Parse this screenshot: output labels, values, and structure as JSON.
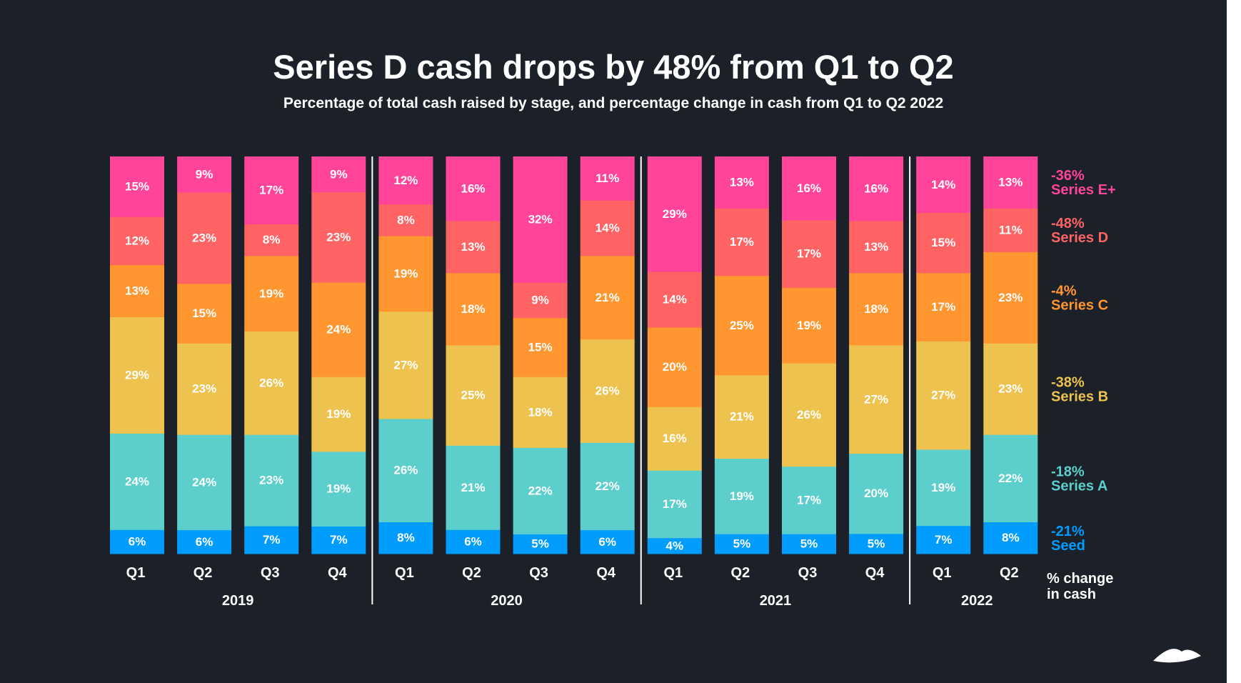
{
  "chart_data": {
    "type": "bar",
    "stacked": true,
    "title": "Series D cash drops by 48% from Q1 to Q2",
    "subtitle": "Percentage of total cash raised by stage, and percentage change in cash from Q1 to Q2 2022",
    "categories": [
      "Q1",
      "Q2",
      "Q3",
      "Q4",
      "Q1",
      "Q2",
      "Q3",
      "Q4",
      "Q1",
      "Q2",
      "Q3",
      "Q4",
      "Q1",
      "Q2"
    ],
    "groups": [
      {
        "label": "2019",
        "count": 4
      },
      {
        "label": "2020",
        "count": 4
      },
      {
        "label": "2021",
        "count": 4
      },
      {
        "label": "2022",
        "count": 2
      }
    ],
    "series": [
      {
        "name": "Seed",
        "change": "-21%",
        "color": "#009dff",
        "values": [
          6,
          6,
          7,
          7,
          8,
          6,
          5,
          6,
          4,
          5,
          5,
          5,
          7,
          8
        ]
      },
      {
        "name": "Series A",
        "change": "-18%",
        "color": "#5ccfcc",
        "values": [
          24,
          24,
          23,
          19,
          26,
          21,
          22,
          22,
          17,
          19,
          17,
          20,
          19,
          22
        ]
      },
      {
        "name": "Series B",
        "change": "-38%",
        "color": "#eec24e",
        "values": [
          29,
          23,
          26,
          19,
          27,
          25,
          18,
          26,
          16,
          21,
          26,
          27,
          27,
          23
        ]
      },
      {
        "name": "Series C",
        "change": "-4%",
        "color": "#ff9630",
        "values": [
          13,
          15,
          19,
          24,
          19,
          18,
          15,
          21,
          20,
          25,
          19,
          18,
          17,
          23
        ]
      },
      {
        "name": "Series D",
        "change": "-48%",
        "color": "#ff6363",
        "values": [
          12,
          23,
          8,
          23,
          8,
          13,
          9,
          14,
          14,
          17,
          17,
          13,
          15,
          11
        ]
      },
      {
        "name": "Series E+",
        "change": "-36%",
        "color": "#ff4499",
        "values": [
          15,
          9,
          17,
          9,
          12,
          16,
          32,
          11,
          29,
          13,
          16,
          16,
          14,
          13
        ]
      }
    ],
    "ylim": [
      0,
      100
    ],
    "unit": "%",
    "legend_title": [
      "% change",
      "in cash"
    ],
    "legend_placement": "right",
    "grid": false
  },
  "colors": {
    "background": "#1b2029",
    "text": "#ffffff"
  },
  "logo": "mountain-logo-icon"
}
